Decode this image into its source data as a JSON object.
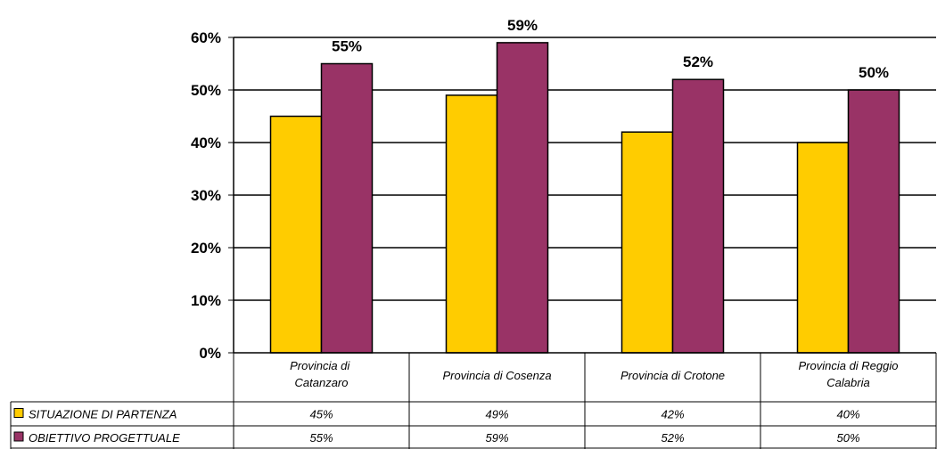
{
  "chart_data": {
    "type": "bar",
    "categories": [
      "Provincia di  Catanzaro",
      "Provincia di Cosenza",
      "Provincia di Crotone",
      "Provincia di Reggio Calabria"
    ],
    "series": [
      {
        "name": "SITUAZIONE DI PARTENZA",
        "values": [
          45,
          49,
          42,
          40
        ],
        "table_labels": [
          "45%",
          "49%",
          "42%",
          "40%"
        ],
        "color": "#FFCC00"
      },
      {
        "name": "OBIETTIVO PROGETTUALE",
        "values": [
          55,
          59,
          52,
          50
        ],
        "table_labels": [
          "55%",
          "59%",
          "52%",
          "50%"
        ],
        "data_labels": [
          "55%",
          "59%",
          "52%",
          "50%"
        ],
        "color": "#993366"
      }
    ],
    "y_ticks": [
      "0%",
      "10%",
      "20%",
      "30%",
      "40%",
      "50%",
      "60%"
    ],
    "ylim": [
      0,
      60
    ],
    "grid": true,
    "legend": "data-table",
    "title": "",
    "xlabel": "",
    "ylabel": ""
  }
}
